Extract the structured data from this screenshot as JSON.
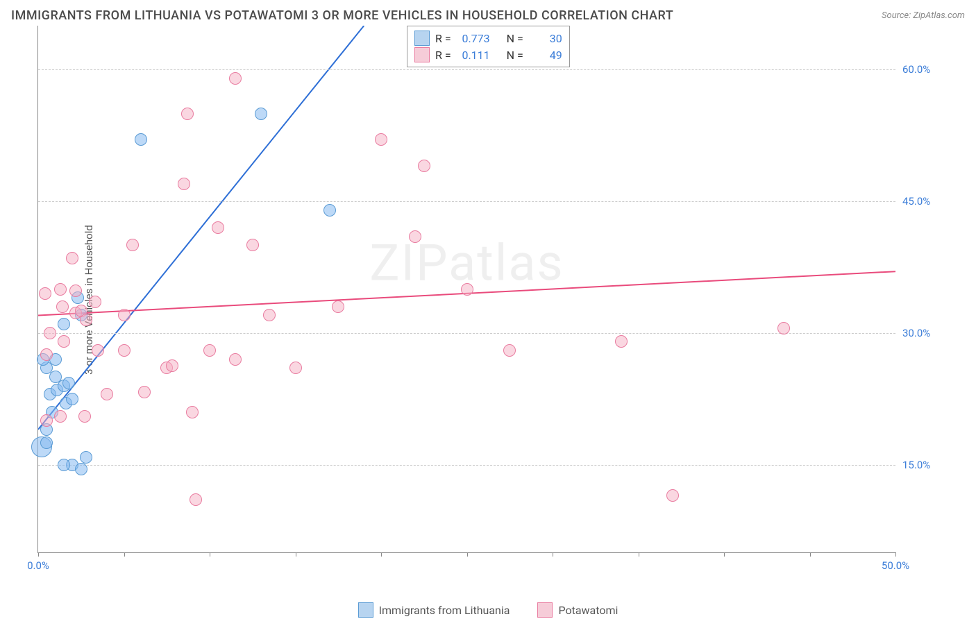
{
  "title": "IMMIGRANTS FROM LITHUANIA VS POTAWATOMI 3 OR MORE VEHICLES IN HOUSEHOLD CORRELATION CHART",
  "source": "Source: ZipAtlas.com",
  "y_axis_label": "3 or more Vehicles in Household",
  "watermark": "ZIPatlas",
  "chart": {
    "type": "scatter",
    "xlim": [
      0,
      50
    ],
    "ylim": [
      5,
      65
    ],
    "x_ticks": [
      0,
      5,
      10,
      15,
      20,
      25,
      30,
      35,
      40,
      45,
      50
    ],
    "x_tick_labels_shown": {
      "0": "0.0%",
      "50": "50.0%"
    },
    "y_ticks": [
      15,
      30,
      45,
      60
    ],
    "y_tick_labels": {
      "15": "15.0%",
      "30": "30.0%",
      "45": "45.0%",
      "60": "60.0%"
    },
    "background_color": "#ffffff",
    "grid_color": "#cccccc",
    "axis_color": "#888888",
    "tick_label_color": "#3b7dd8",
    "series": [
      {
        "name": "Immigrants from Lithuania",
        "color_fill": "rgba(135,185,240,0.55)",
        "color_stroke": "#5a9bd4",
        "legend_swatch_fill": "#b7d4f0",
        "legend_swatch_stroke": "#5a9bd4",
        "R": "0.773",
        "N": "30",
        "trend": {
          "x1": 0,
          "y1": 19,
          "x2": 19,
          "y2": 65,
          "color": "#2e6fd6",
          "width": 2
        },
        "marker_radius": 9,
        "points": [
          {
            "x": 0.2,
            "y": 17,
            "r": 15
          },
          {
            "x": 0.5,
            "y": 17.5
          },
          {
            "x": 0.5,
            "y": 19
          },
          {
            "x": 0.8,
            "y": 21
          },
          {
            "x": 0.7,
            "y": 23
          },
          {
            "x": 1.1,
            "y": 23.5
          },
          {
            "x": 1.0,
            "y": 25
          },
          {
            "x": 0.5,
            "y": 26
          },
          {
            "x": 0.3,
            "y": 27
          },
          {
            "x": 1.0,
            "y": 27
          },
          {
            "x": 1.5,
            "y": 24
          },
          {
            "x": 1.8,
            "y": 24.3
          },
          {
            "x": 1.6,
            "y": 22
          },
          {
            "x": 2.0,
            "y": 22.5
          },
          {
            "x": 2.0,
            "y": 15
          },
          {
            "x": 1.5,
            "y": 15
          },
          {
            "x": 2.5,
            "y": 14.5
          },
          {
            "x": 2.8,
            "y": 15.8
          },
          {
            "x": 1.5,
            "y": 31
          },
          {
            "x": 2.5,
            "y": 32
          },
          {
            "x": 2.3,
            "y": 34
          },
          {
            "x": 6.0,
            "y": 52
          },
          {
            "x": 13.0,
            "y": 55
          },
          {
            "x": 17.0,
            "y": 44
          }
        ]
      },
      {
        "name": "Potawatomi",
        "color_fill": "rgba(245,175,195,0.5)",
        "color_stroke": "#e97ca0",
        "legend_swatch_fill": "#f6ccd8",
        "legend_swatch_stroke": "#e97ca0",
        "R": "0.111",
        "N": "49",
        "trend": {
          "x1": 0,
          "y1": 32,
          "x2": 50,
          "y2": 37,
          "color": "#e94b7c",
          "width": 2
        },
        "marker_radius": 9,
        "points": [
          {
            "x": 0.5,
            "y": 20
          },
          {
            "x": 1.3,
            "y": 20.5
          },
          {
            "x": 2.7,
            "y": 20.5
          },
          {
            "x": 0.5,
            "y": 27.5
          },
          {
            "x": 0.7,
            "y": 30
          },
          {
            "x": 1.5,
            "y": 29
          },
          {
            "x": 1.4,
            "y": 33
          },
          {
            "x": 1.3,
            "y": 35
          },
          {
            "x": 2.2,
            "y": 32.3
          },
          {
            "x": 2.5,
            "y": 32.5
          },
          {
            "x": 2.8,
            "y": 31.5
          },
          {
            "x": 2.2,
            "y": 34.8
          },
          {
            "x": 0.4,
            "y": 34.5
          },
          {
            "x": 3.3,
            "y": 33.5
          },
          {
            "x": 2.0,
            "y": 38.5
          },
          {
            "x": 3.5,
            "y": 28
          },
          {
            "x": 5.0,
            "y": 28
          },
          {
            "x": 4.0,
            "y": 23
          },
          {
            "x": 6.2,
            "y": 23.3
          },
          {
            "x": 5.0,
            "y": 32
          },
          {
            "x": 5.5,
            "y": 40
          },
          {
            "x": 7.5,
            "y": 26
          },
          {
            "x": 7.8,
            "y": 26.3
          },
          {
            "x": 8.5,
            "y": 47
          },
          {
            "x": 8.7,
            "y": 55
          },
          {
            "x": 10.0,
            "y": 28
          },
          {
            "x": 9.0,
            "y": 21
          },
          {
            "x": 9.2,
            "y": 11
          },
          {
            "x": 10.5,
            "y": 42
          },
          {
            "x": 11.5,
            "y": 27
          },
          {
            "x": 11.5,
            "y": 59
          },
          {
            "x": 12.5,
            "y": 40
          },
          {
            "x": 13.5,
            "y": 32
          },
          {
            "x": 15.0,
            "y": 26
          },
          {
            "x": 17.5,
            "y": 33
          },
          {
            "x": 20.0,
            "y": 52
          },
          {
            "x": 22.0,
            "y": 41
          },
          {
            "x": 22.5,
            "y": 49
          },
          {
            "x": 25.0,
            "y": 35
          },
          {
            "x": 27.5,
            "y": 28
          },
          {
            "x": 34.0,
            "y": 29
          },
          {
            "x": 37.0,
            "y": 11.5
          },
          {
            "x": 43.5,
            "y": 30.5
          }
        ]
      }
    ]
  },
  "legend_box_labels": {
    "R": "R =",
    "N": "N ="
  }
}
